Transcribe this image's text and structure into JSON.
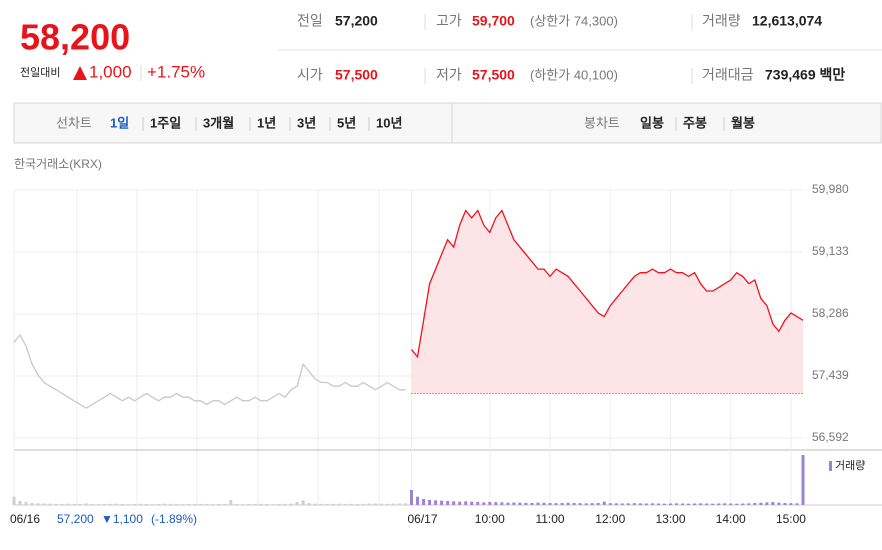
{
  "header": {
    "price": "58,200",
    "change_label": "전일대비",
    "change": "1,000",
    "change_rate": "+1.75%"
  },
  "summary": {
    "rows": [
      [
        {
          "label": "전일",
          "value": "57,200"
        },
        {
          "label": "고가",
          "value": "59,700",
          "note": "(상한가 74,300)"
        },
        {
          "label": "거래량",
          "value": "12,613,074"
        }
      ],
      [
        {
          "label": "시가",
          "value": "57,500"
        },
        {
          "label": "저가",
          "value": "57,500",
          "note": "(하한가 40,100)"
        },
        {
          "label": "거래대금",
          "value": "739,469 백만"
        }
      ]
    ]
  },
  "tabs": {
    "line_label": "선차트",
    "line_periods": [
      "1일",
      "1주일",
      "3개월",
      "1년",
      "3년",
      "5년",
      "10년"
    ],
    "selected": 0,
    "candle_label": "봉차트",
    "candle_periods": [
      "일봉",
      "주봉",
      "월봉"
    ]
  },
  "source": "한국거래소(KRX)",
  "footer": {
    "price": "57,200",
    "change": "▼1,100",
    "rate": "(-1.89%)"
  },
  "chart_data": {
    "type": "line",
    "categories": [
      "06/16",
      null,
      null,
      null,
      null,
      null,
      null,
      null,
      null,
      null,
      null,
      null,
      null,
      null,
      null,
      null,
      null,
      null,
      null,
      null,
      null,
      null,
      null,
      null,
      null,
      null,
      null,
      null,
      null,
      null,
      null,
      null,
      null,
      null,
      null,
      null,
      null,
      null,
      null,
      null,
      null,
      null,
      null,
      null,
      null,
      null,
      null,
      null,
      null,
      null,
      null,
      null,
      null,
      null,
      null,
      null,
      null,
      null,
      null,
      null,
      null,
      null,
      null,
      null,
      null,
      null,
      "06/17",
      null,
      null,
      null,
      null,
      null,
      null,
      null,
      null,
      null,
      null,
      null,
      null,
      "10:00",
      null,
      null,
      null,
      null,
      null,
      null,
      null,
      null,
      null,
      "11:00",
      null,
      null,
      null,
      null,
      null,
      null,
      null,
      null,
      null,
      "12:00",
      null,
      null,
      null,
      null,
      null,
      null,
      null,
      null,
      null,
      "13:00",
      null,
      null,
      null,
      null,
      null,
      null,
      null,
      null,
      null,
      "14:00",
      null,
      null,
      null,
      null,
      null,
      null,
      null,
      null,
      null,
      "15:00",
      null,
      null
    ],
    "series": [
      {
        "color": "#c8c8c8",
        "values": [
          57900,
          58000,
          57850,
          57600,
          57450,
          57350,
          57300,
          57250,
          57200,
          57150,
          57100,
          57050,
          57000,
          57050,
          57100,
          57150,
          57200,
          57150,
          57100,
          57150,
          57100,
          57150,
          57200,
          57150,
          57100,
          57150,
          57150,
          57200,
          57150,
          57150,
          57100,
          57100,
          57050,
          57100,
          57100,
          57050,
          57100,
          57150,
          57100,
          57100,
          57150,
          57100,
          57100,
          57150,
          57200,
          57150,
          57250,
          57300,
          57600,
          57500,
          57400,
          57350,
          57350,
          57300,
          57300,
          57350,
          57300,
          57300,
          57350,
          57300,
          57250,
          57300,
          57350,
          57300,
          57250,
          57250,
          null,
          null,
          null,
          null,
          null,
          null,
          null,
          null,
          null,
          null,
          null,
          null,
          null,
          null,
          null,
          null,
          null,
          null,
          null,
          null,
          null,
          null,
          null,
          null,
          null,
          null,
          null,
          null,
          null,
          null,
          null,
          null,
          null,
          null,
          null,
          null,
          null,
          null,
          null,
          null,
          null,
          null,
          null,
          null,
          null,
          null,
          null,
          null,
          null,
          null,
          null,
          null,
          null,
          null,
          null,
          null,
          null,
          null,
          null,
          null,
          null,
          null,
          null,
          null,
          null,
          null
        ]
      },
      {
        "color": "#f0141e",
        "fill": "#fde4e6",
        "values": [
          null,
          null,
          null,
          null,
          null,
          null,
          null,
          null,
          null,
          null,
          null,
          null,
          null,
          null,
          null,
          null,
          null,
          null,
          null,
          null,
          null,
          null,
          null,
          null,
          null,
          null,
          null,
          null,
          null,
          null,
          null,
          null,
          null,
          null,
          null,
          null,
          null,
          null,
          null,
          null,
          null,
          null,
          null,
          null,
          null,
          null,
          null,
          null,
          null,
          null,
          null,
          null,
          null,
          null,
          null,
          null,
          null,
          null,
          null,
          null,
          null,
          null,
          null,
          null,
          null,
          null,
          57800,
          57700,
          58200,
          58700,
          58900,
          59100,
          59300,
          59200,
          59500,
          59700,
          59600,
          59700,
          59500,
          59400,
          59600,
          59700,
          59500,
          59300,
          59200,
          59100,
          59000,
          58900,
          58900,
          58800,
          58900,
          58850,
          58800,
          58700,
          58600,
          58500,
          58400,
          58300,
          58250,
          58400,
          58500,
          58600,
          58700,
          58800,
          58850,
          58850,
          58900,
          58850,
          58850,
          58900,
          58850,
          58850,
          58800,
          58850,
          58700,
          58600,
          58600,
          58650,
          58700,
          58750,
          58850,
          58800,
          58700,
          58750,
          58500,
          58400,
          58150,
          58050,
          58200,
          58300,
          58250,
          58200
        ]
      }
    ],
    "baseline": 57200,
    "ylim": [
      56592,
      59980
    ],
    "yticks": [
      {
        "value": 56592,
        "label": "56,592"
      },
      {
        "value": 57439,
        "label": "57,439"
      },
      {
        "value": 58286,
        "label": "58,286"
      },
      {
        "value": 59133,
        "label": "59,133"
      },
      {
        "value": 59980,
        "label": "59,980"
      }
    ],
    "grid": true,
    "volume": {
      "name": "거래량",
      "color": "#9a86d0",
      "past_color": "#cfcfcf",
      "axis": "y2",
      "values": [
        250000,
        120000,
        90000,
        60000,
        50000,
        45000,
        40000,
        35000,
        30000,
        40000,
        35000,
        30000,
        45000,
        30000,
        25000,
        30000,
        35000,
        40000,
        30000,
        25000,
        30000,
        35000,
        30000,
        25000,
        30000,
        40000,
        35000,
        30000,
        25000,
        30000,
        30000,
        35000,
        30000,
        25000,
        30000,
        35000,
        150000,
        30000,
        25000,
        30000,
        30000,
        35000,
        30000,
        25000,
        30000,
        35000,
        40000,
        90000,
        140000,
        60000,
        40000,
        35000,
        30000,
        35000,
        40000,
        30000,
        35000,
        30000,
        35000,
        40000,
        45000,
        40000,
        35000,
        40000,
        45000,
        50000,
        450000,
        250000,
        180000,
        150000,
        140000,
        130000,
        120000,
        110000,
        100000,
        110000,
        100000,
        90000,
        80000,
        90000,
        85000,
        80000,
        70000,
        75000,
        70000,
        65000,
        60000,
        70000,
        65000,
        60000,
        55000,
        60000,
        65000,
        60000,
        55000,
        50000,
        55000,
        60000,
        100000,
        55000,
        50000,
        45000,
        50000,
        55000,
        50000,
        45000,
        50000,
        45000,
        40000,
        45000,
        50000,
        45000,
        40000,
        45000,
        50000,
        45000,
        40000,
        45000,
        50000,
        45000,
        40000,
        45000,
        50000,
        60000,
        70000,
        80000,
        90000,
        70000,
        60000,
        55000,
        50000,
        1500000
      ]
    },
    "y2lim": [
      0,
      1500000
    ]
  }
}
